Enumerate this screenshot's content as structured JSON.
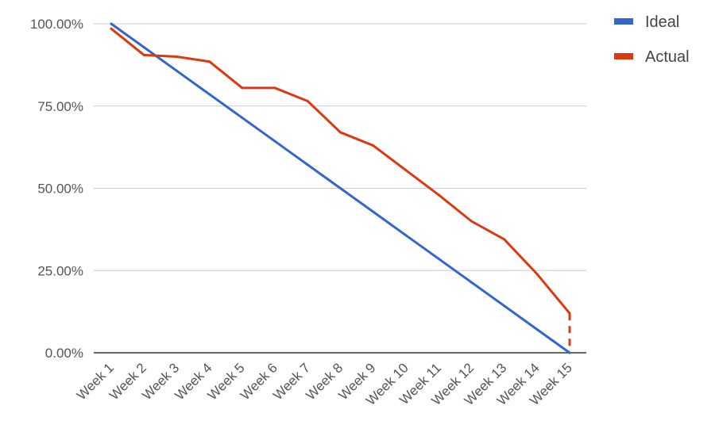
{
  "chart_data": {
    "type": "line",
    "title": "",
    "xlabel": "",
    "ylabel": "",
    "categories": [
      "Week 1",
      "Week 2",
      "Week 3",
      "Week 4",
      "Week 5",
      "Week 6",
      "Week 7",
      "Week 8",
      "Week 9",
      "Week 10",
      "Week 11",
      "Week 12",
      "Week 13",
      "Week 14",
      "Week 15"
    ],
    "ylim": [
      0,
      100
    ],
    "yticks": [
      "0.00%",
      "25.00%",
      "50.00%",
      "75.00%",
      "100.00%"
    ],
    "ytick_values": [
      0,
      25,
      50,
      75,
      100
    ],
    "grid": true,
    "legend_position": "top-right",
    "series": [
      {
        "name": "Ideal",
        "color": "#3366cc",
        "values": [
          100,
          92.86,
          85.71,
          78.57,
          71.43,
          64.29,
          57.14,
          50,
          42.86,
          35.71,
          28.57,
          21.43,
          14.29,
          7.14,
          0
        ]
      },
      {
        "name": "Actual",
        "color": "#dc3912",
        "values": [
          98.5,
          90.5,
          90,
          88.5,
          80.5,
          80.5,
          76.5,
          67,
          63,
          55.5,
          48,
          40,
          34.5,
          24,
          12
        ]
      }
    ]
  }
}
